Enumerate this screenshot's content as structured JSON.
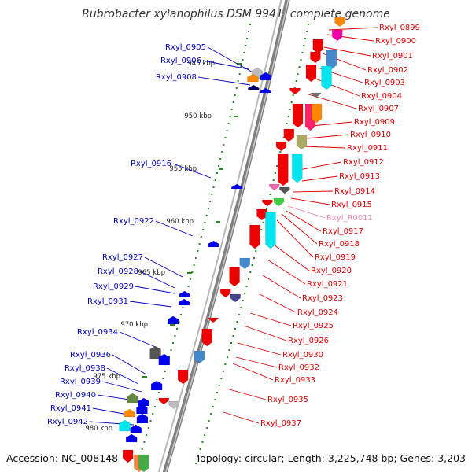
{
  "title": "Rubrobacter xylanophilus DSM 9941, complete genome",
  "accession": "Accession: NC_008148",
  "summary": "Topology: circular; Length: 3,225,748 bp; Genes: 3,203",
  "scale_ticks": [
    "945 kbp",
    "950 kbp",
    "955 kbp",
    "960 kbp",
    "965 kbp",
    "970 kbp",
    "975 kbp",
    "980 kbp"
  ],
  "colors": {
    "forward_label": "#dd0000",
    "reverse_label": "#0000bb",
    "rna_label": "#ee88aa",
    "forward_gene": "#ee0000",
    "reverse_gene": "#0000ee",
    "backbone": "#808080",
    "tick": "#228822"
  },
  "left_labels": [
    "Rxyl_0905",
    "Rxyl_0906",
    "Rxyl_0908",
    "Rxyl_0916",
    "Rxyl_0922",
    "Rxyl_0927",
    "Rxyl_0928",
    "Rxyl_0929",
    "Rxyl_0931",
    "Rxyl_0934",
    "Rxyl_0936",
    "Rxyl_0938",
    "Rxyl_0939",
    "Rxyl_0940",
    "Rxyl_0941",
    "Rxyl_0942"
  ],
  "right_labels": [
    "Rxyl_0899",
    "Rxyl_0900",
    "Rxyl_0901",
    "Rxyl_0902",
    "Rxyl_0903",
    "Rxyl_0904",
    "Rxyl_0907",
    "Rxyl_0909",
    "Rxyl_0910",
    "Rxyl_0911",
    "Rxyl_0912",
    "Rxyl_0913",
    "Rxyl_0914",
    "Rxyl_0915",
    "Rxyl_R0011",
    "Rxyl_0917",
    "Rxyl_0918",
    "Rxyl_0919",
    "Rxyl_0920",
    "Rxyl_0921",
    "Rxyl_0923",
    "Rxyl_0924",
    "Rxyl_0925",
    "Rxyl_0926",
    "Rxyl_0930",
    "Rxyl_0932",
    "Rxyl_0933",
    "Rxyl_0935",
    "Rxyl_0937"
  ]
}
